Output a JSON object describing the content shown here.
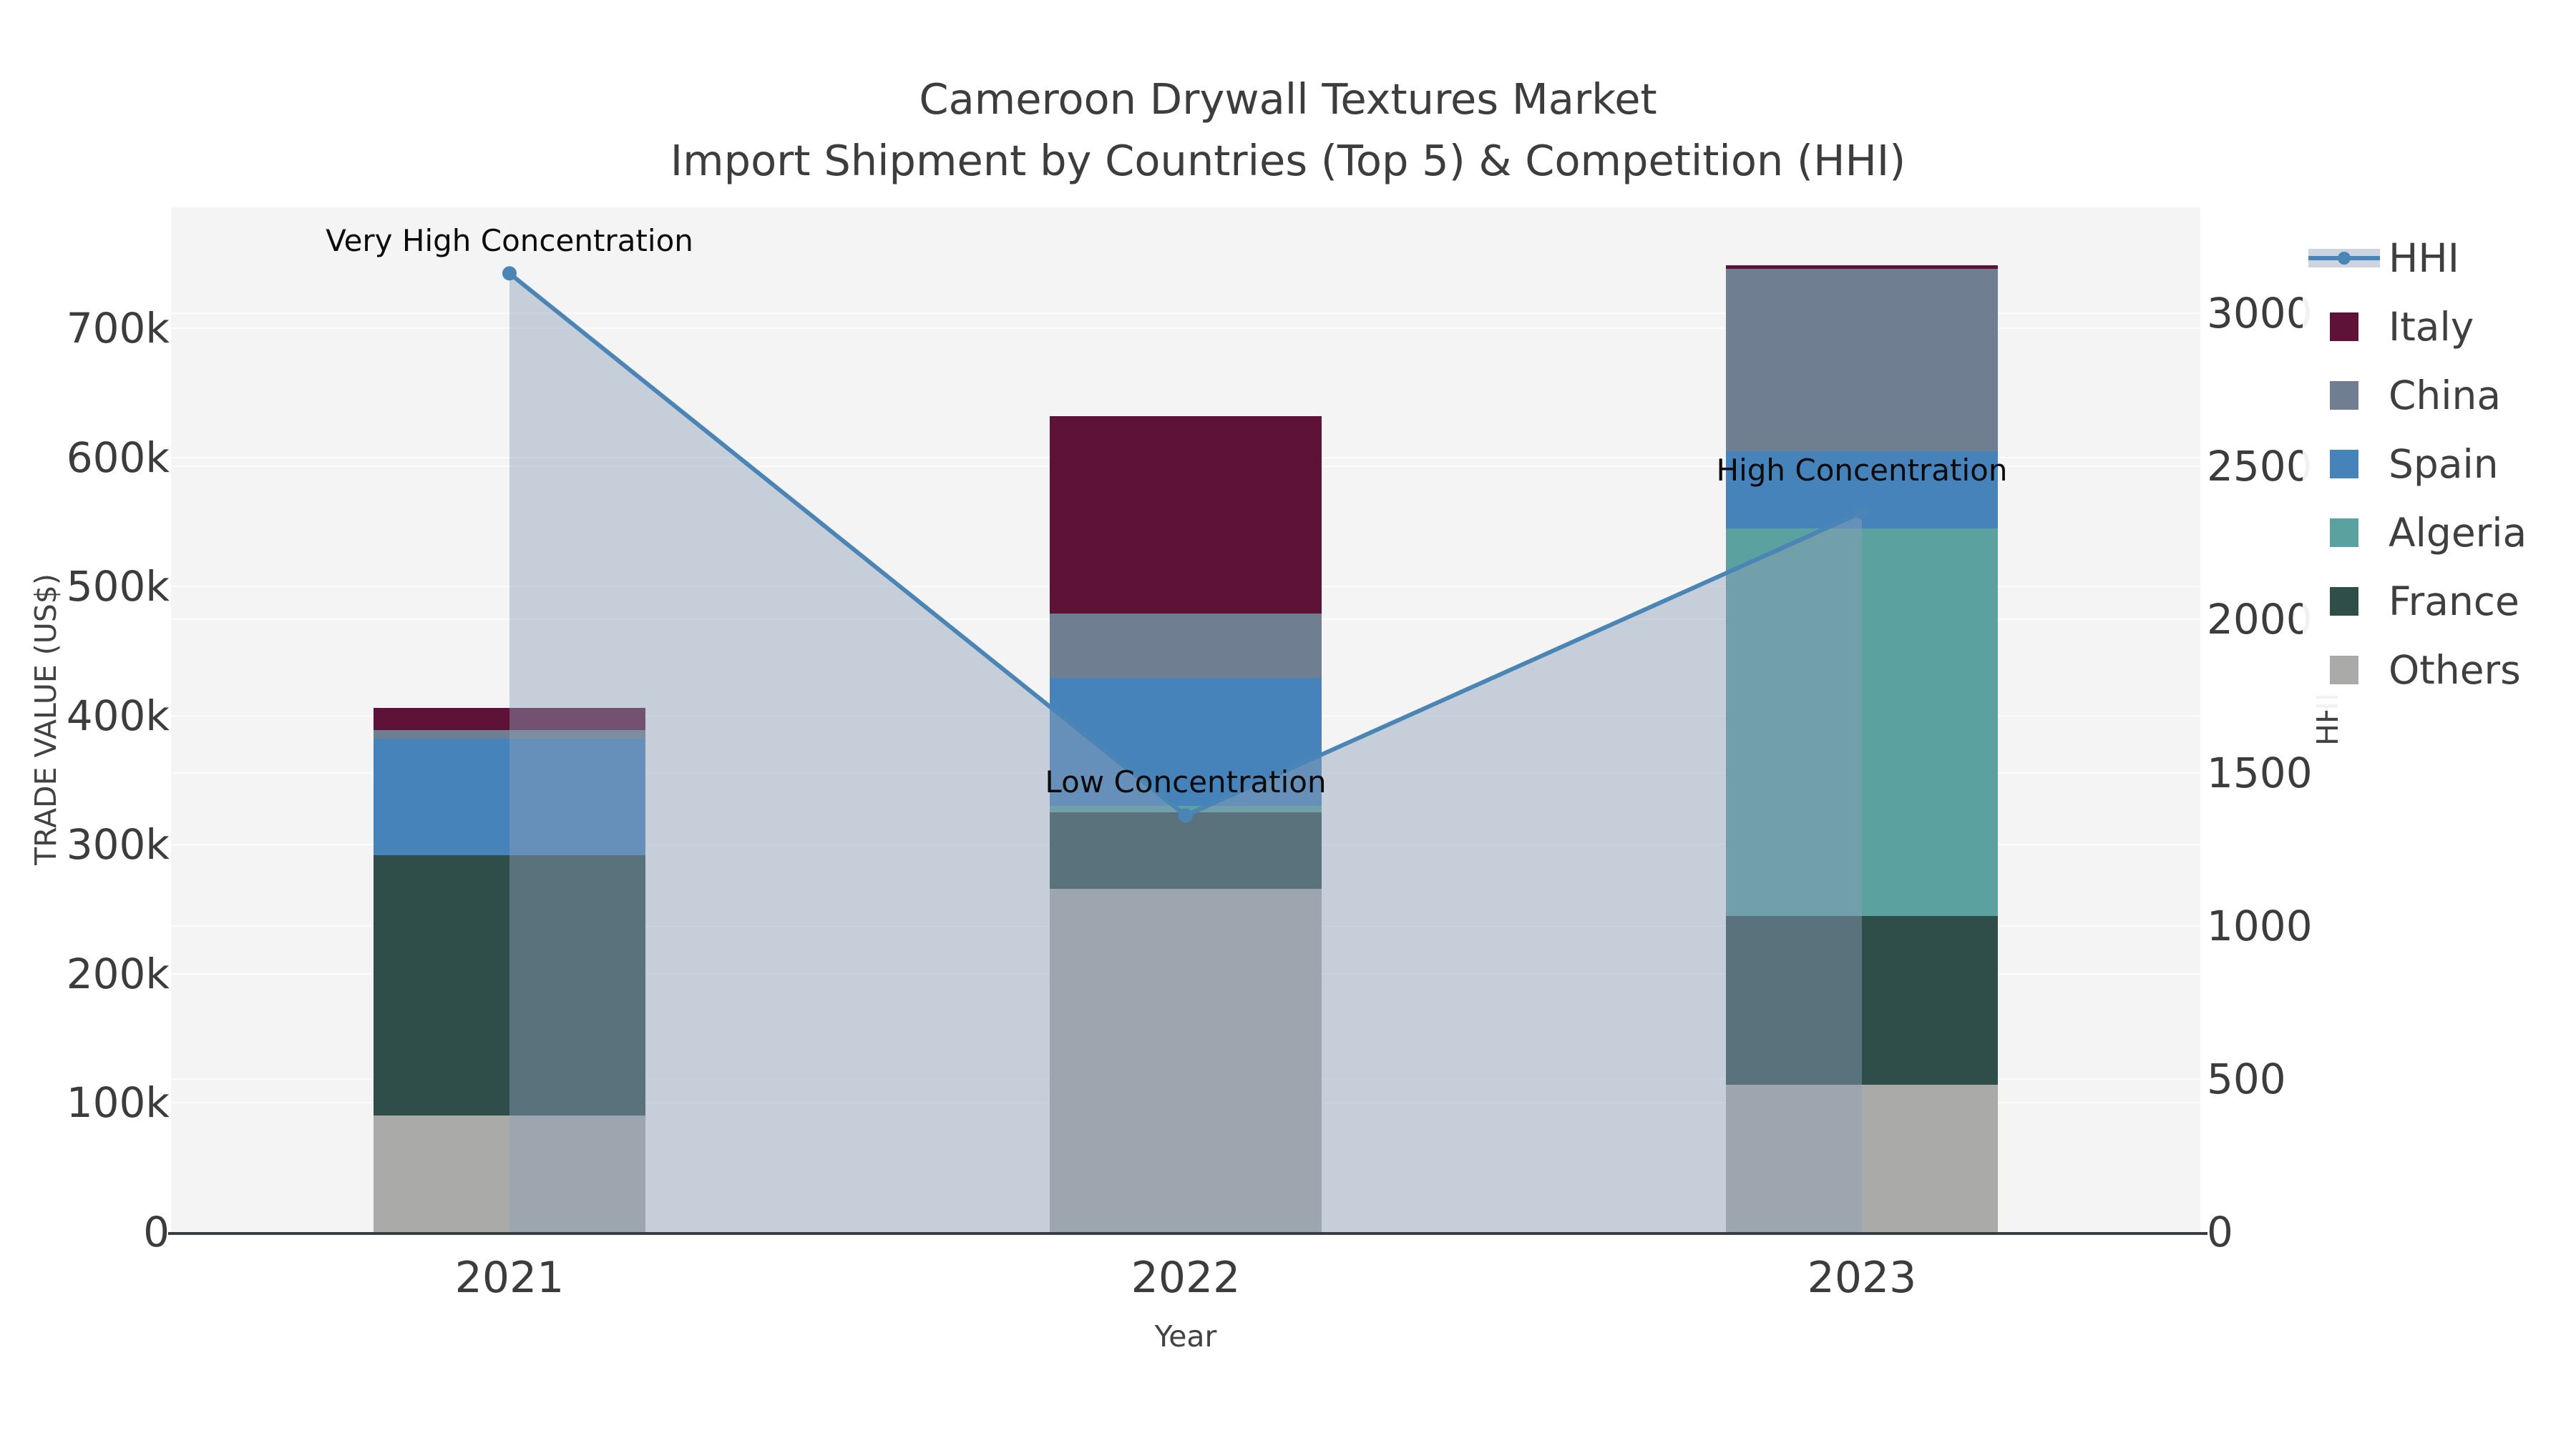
{
  "title": {
    "line1": "Cameroon Drywall Textures Market",
    "line2": "Import Shipment by Countries (Top 5) & Competition (HHI)"
  },
  "axes": {
    "left": {
      "title": "TRADE VALUE (US$)",
      "tick_labels": [
        "0",
        "100k",
        "200k",
        "300k",
        "400k",
        "500k",
        "600k",
        "700k"
      ],
      "tick_values": [
        0,
        100000,
        200000,
        300000,
        400000,
        500000,
        600000,
        700000
      ]
    },
    "right": {
      "title": "HHI",
      "tick_labels": [
        "0",
        "500",
        "1000",
        "1500",
        "2000",
        "2500",
        "3000"
      ],
      "tick_values": [
        0,
        500,
        1000,
        1500,
        2000,
        2500,
        3000
      ]
    },
    "x": {
      "title": "Year",
      "categories": [
        "2021",
        "2022",
        "2023"
      ]
    }
  },
  "legend": [
    {
      "name": "HHI",
      "type": "line",
      "color": "#4a85b5"
    },
    {
      "name": "Italy",
      "type": "patch",
      "color": "#5e1237"
    },
    {
      "name": "China",
      "type": "patch",
      "color": "#6f7f91"
    },
    {
      "name": "Spain",
      "type": "patch",
      "color": "#4583ba"
    },
    {
      "name": "Algeria",
      "type": "patch",
      "color": "#5aa19f"
    },
    {
      "name": "France",
      "type": "patch",
      "color": "#2f4e49"
    },
    {
      "name": "Others",
      "type": "patch",
      "color": "#aaaaa8"
    }
  ],
  "annotations": [
    {
      "text": "Very High Concentration",
      "category": "2021"
    },
    {
      "text": "Low Concentration",
      "category": "2022"
    },
    {
      "text": "High Concentration",
      "category": "2023"
    }
  ],
  "colors": {
    "hhi_line": "#4a85b5",
    "hhi_fill": "rgba(143,160,184,0.45)",
    "plot_background": "#f4f4f5",
    "spine": "#3a3e42"
  },
  "chart_data": {
    "type": "bar+line",
    "title": "Cameroon Drywall Textures Market — Import Shipment by Countries (Top 5) & Competition (HHI)",
    "categories": [
      "2021",
      "2022",
      "2023"
    ],
    "stacked": true,
    "bar_series_bottom_to_top": [
      {
        "name": "Others",
        "color": "#aaaaa8",
        "values": [
          90000,
          266000,
          114000
        ]
      },
      {
        "name": "France",
        "color": "#2f4e49",
        "values": [
          202000,
          59000,
          131000
        ]
      },
      {
        "name": "Algeria",
        "color": "#5aa19f",
        "values": [
          0,
          5000,
          300000
        ]
      },
      {
        "name": "Spain",
        "color": "#4583ba",
        "values": [
          90000,
          99000,
          60000
        ]
      },
      {
        "name": "China",
        "color": "#6f7f91",
        "values": [
          7000,
          50000,
          141000
        ]
      },
      {
        "name": "Italy",
        "color": "#5e1237",
        "values": [
          17000,
          153000,
          3000
        ]
      }
    ],
    "bar_totals": [
      406000,
      632000,
      749000
    ],
    "line_series": {
      "name": "HHI",
      "color": "#4a85b5",
      "values": [
        3130,
        1360,
        2350
      ],
      "axis": "right",
      "area_fill": true
    },
    "xlabel": "Year",
    "ylabel_left": "TRADE VALUE (US$)",
    "ylabel_right": "HHI",
    "ylim_left": [
      0,
      770000
    ],
    "ylim_right": [
      0,
      3300
    ],
    "grid": true,
    "legend_position": "right"
  }
}
